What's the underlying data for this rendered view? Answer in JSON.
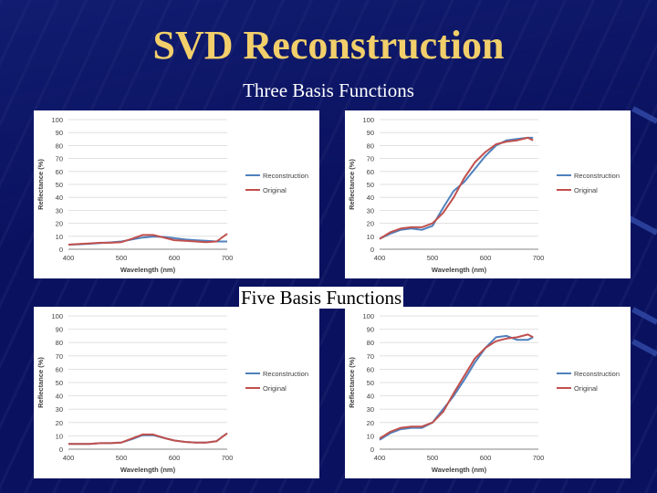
{
  "slide": {
    "title": "SVD Reconstruction",
    "section_three": "Three Basis Functions",
    "section_five": "Five Basis Functions"
  },
  "colors": {
    "background": "#0a1260",
    "title": "#f2cf6a",
    "reconstruction": "#4f81bd",
    "original": "#c0504d"
  },
  "chart_data": [
    {
      "type": "line",
      "xlabel": "Wavelength (nm)",
      "ylabel": "Reflectance (%)",
      "xlim": [
        400,
        700
      ],
      "ylim": [
        0,
        100
      ],
      "xticks": [
        400,
        500,
        600,
        700
      ],
      "yticks": [
        0,
        10,
        20,
        30,
        40,
        50,
        60,
        70,
        80,
        90,
        100
      ],
      "legend_position": "right",
      "series": [
        {
          "name": "Reconstruction",
          "x": [
            400,
            420,
            440,
            460,
            480,
            500,
            520,
            540,
            560,
            580,
            600,
            620,
            640,
            660,
            680,
            700
          ],
          "values": [
            3.5,
            3.8,
            4.2,
            4.8,
            5.3,
            6,
            7.5,
            9,
            9.8,
            9.5,
            8.5,
            7.5,
            7,
            6.5,
            6,
            6
          ]
        },
        {
          "name": "Original",
          "x": [
            400,
            420,
            440,
            460,
            480,
            500,
            520,
            540,
            560,
            580,
            600,
            620,
            640,
            660,
            680,
            700
          ],
          "values": [
            3.5,
            4,
            4.5,
            5,
            5,
            5.5,
            8,
            11,
            11,
            9,
            7,
            6.5,
            6,
            5.5,
            6,
            12
          ]
        }
      ]
    },
    {
      "type": "line",
      "xlabel": "Wavelength (nm)",
      "ylabel": "Reflectance (%)",
      "xlim": [
        400,
        700
      ],
      "ylim": [
        0,
        100
      ],
      "xticks": [
        400,
        500,
        600,
        700
      ],
      "yticks": [
        0,
        10,
        20,
        30,
        40,
        50,
        60,
        70,
        80,
        90,
        100
      ],
      "legend_position": "right",
      "series": [
        {
          "name": "Reconstruction",
          "x": [
            400,
            420,
            440,
            460,
            480,
            500,
            520,
            540,
            560,
            580,
            600,
            620,
            640,
            660,
            680,
            690
          ],
          "values": [
            8,
            12,
            15,
            16,
            15,
            18,
            32,
            45,
            52,
            62,
            72,
            80,
            84,
            85,
            86,
            86
          ]
        },
        {
          "name": "Original",
          "x": [
            400,
            420,
            440,
            460,
            480,
            500,
            520,
            540,
            560,
            580,
            600,
            620,
            640,
            660,
            680,
            690
          ],
          "values": [
            8,
            13,
            16,
            17,
            17,
            20,
            28,
            40,
            55,
            67,
            75,
            81,
            83,
            84,
            86,
            84
          ]
        }
      ]
    },
    {
      "type": "line",
      "xlabel": "Wavelength (nm)",
      "ylabel": "Reflectance (%)",
      "xlim": [
        400,
        700
      ],
      "ylim": [
        0,
        100
      ],
      "xticks": [
        400,
        500,
        600,
        700
      ],
      "yticks": [
        0,
        10,
        20,
        30,
        40,
        50,
        60,
        70,
        80,
        90,
        100
      ],
      "legend_position": "right",
      "series": [
        {
          "name": "Reconstruction",
          "x": [
            400,
            420,
            440,
            460,
            480,
            500,
            520,
            540,
            560,
            580,
            600,
            620,
            640,
            660,
            680,
            700
          ],
          "values": [
            4,
            4,
            4,
            4.5,
            4.5,
            5,
            7.5,
            10.5,
            10.5,
            8.5,
            6.5,
            5.5,
            5,
            5,
            6,
            12
          ]
        },
        {
          "name": "Original",
          "x": [
            400,
            420,
            440,
            460,
            480,
            500,
            520,
            540,
            560,
            580,
            600,
            620,
            640,
            660,
            680,
            700
          ],
          "values": [
            4,
            4,
            4,
            4.5,
            4.5,
            5,
            8,
            11,
            11,
            8.5,
            6.5,
            5.5,
            5,
            5,
            6,
            12
          ]
        }
      ]
    },
    {
      "type": "line",
      "xlabel": "Wavelength (nm)",
      "ylabel": "Reflectance (%)",
      "xlim": [
        400,
        700
      ],
      "ylim": [
        0,
        100
      ],
      "xticks": [
        400,
        500,
        600,
        700
      ],
      "yticks": [
        0,
        10,
        20,
        30,
        40,
        50,
        60,
        70,
        80,
        90,
        100
      ],
      "legend_position": "right",
      "series": [
        {
          "name": "Reconstruction",
          "x": [
            400,
            420,
            440,
            460,
            480,
            500,
            520,
            540,
            560,
            580,
            600,
            620,
            640,
            660,
            680,
            690
          ],
          "values": [
            7,
            12,
            15,
            16,
            16,
            20,
            30,
            40,
            52,
            65,
            76,
            84,
            85,
            82,
            82,
            84
          ]
        },
        {
          "name": "Original",
          "x": [
            400,
            420,
            440,
            460,
            480,
            500,
            520,
            540,
            560,
            580,
            600,
            620,
            640,
            660,
            680,
            690
          ],
          "values": [
            8,
            13,
            16,
            17,
            17,
            20,
            28,
            42,
            55,
            68,
            76,
            81,
            83,
            84,
            86,
            84
          ]
        }
      ]
    }
  ]
}
